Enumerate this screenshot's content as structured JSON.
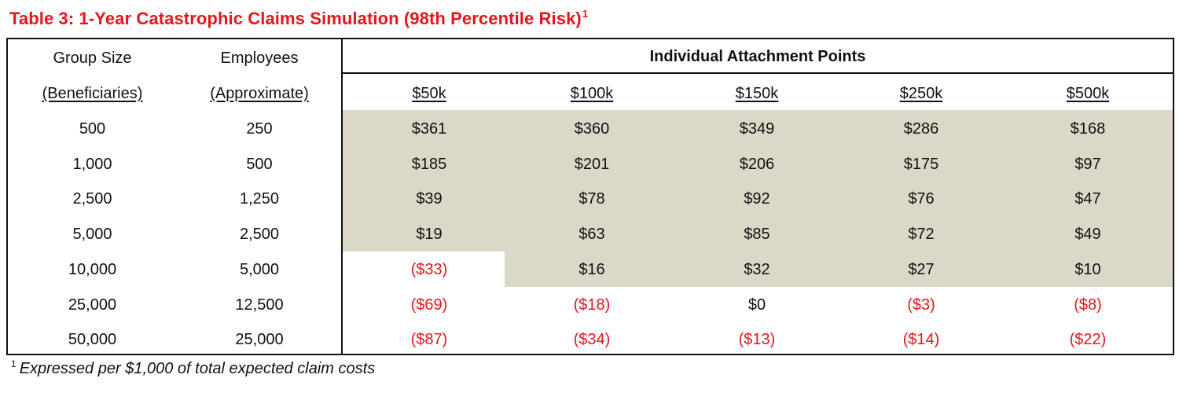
{
  "title": {
    "text": "Table 3: 1-Year Catastrophic Claims Simulation (98th Percentile Risk)",
    "sup": "1"
  },
  "headers": {
    "group_size_line1": "Group Size",
    "group_size_line2": "(Beneficiaries)",
    "employees_line1": "Employees",
    "employees_line2": "(Approximate)",
    "attachment_points": "Individual Attachment Points",
    "columns": [
      "$50k",
      "$100k",
      "$150k",
      "$250k",
      "$500k"
    ]
  },
  "rows": [
    {
      "group": "500",
      "employees": "250",
      "values": [
        "$361",
        "$360",
        "$349",
        "$286",
        "$168"
      ]
    },
    {
      "group": "1,000",
      "employees": "500",
      "values": [
        "$185",
        "$201",
        "$206",
        "$175",
        "$97"
      ]
    },
    {
      "group": "2,500",
      "employees": "1,250",
      "values": [
        "$39",
        "$78",
        "$92",
        "$76",
        "$47"
      ]
    },
    {
      "group": "5,000",
      "employees": "2,500",
      "values": [
        "$19",
        "$63",
        "$85",
        "$72",
        "$49"
      ]
    },
    {
      "group": "10,000",
      "employees": "5,000",
      "values": [
        "($33)",
        "$16",
        "$32",
        "$27",
        "$10"
      ]
    },
    {
      "group": "25,000",
      "employees": "12,500",
      "values": [
        "($69)",
        "($18)",
        "$0",
        "($3)",
        "($8)"
      ]
    },
    {
      "group": "50,000",
      "employees": "25,000",
      "values": [
        "($87)",
        "($34)",
        "($13)",
        "($14)",
        "($22)"
      ]
    }
  ],
  "footnote": {
    "sup": "1",
    "text": "Expressed per $1,000 of total expected claim costs"
  },
  "colors": {
    "negative": "#e8141b",
    "shade": "#dcd8c8",
    "title": "#e8141b"
  }
}
